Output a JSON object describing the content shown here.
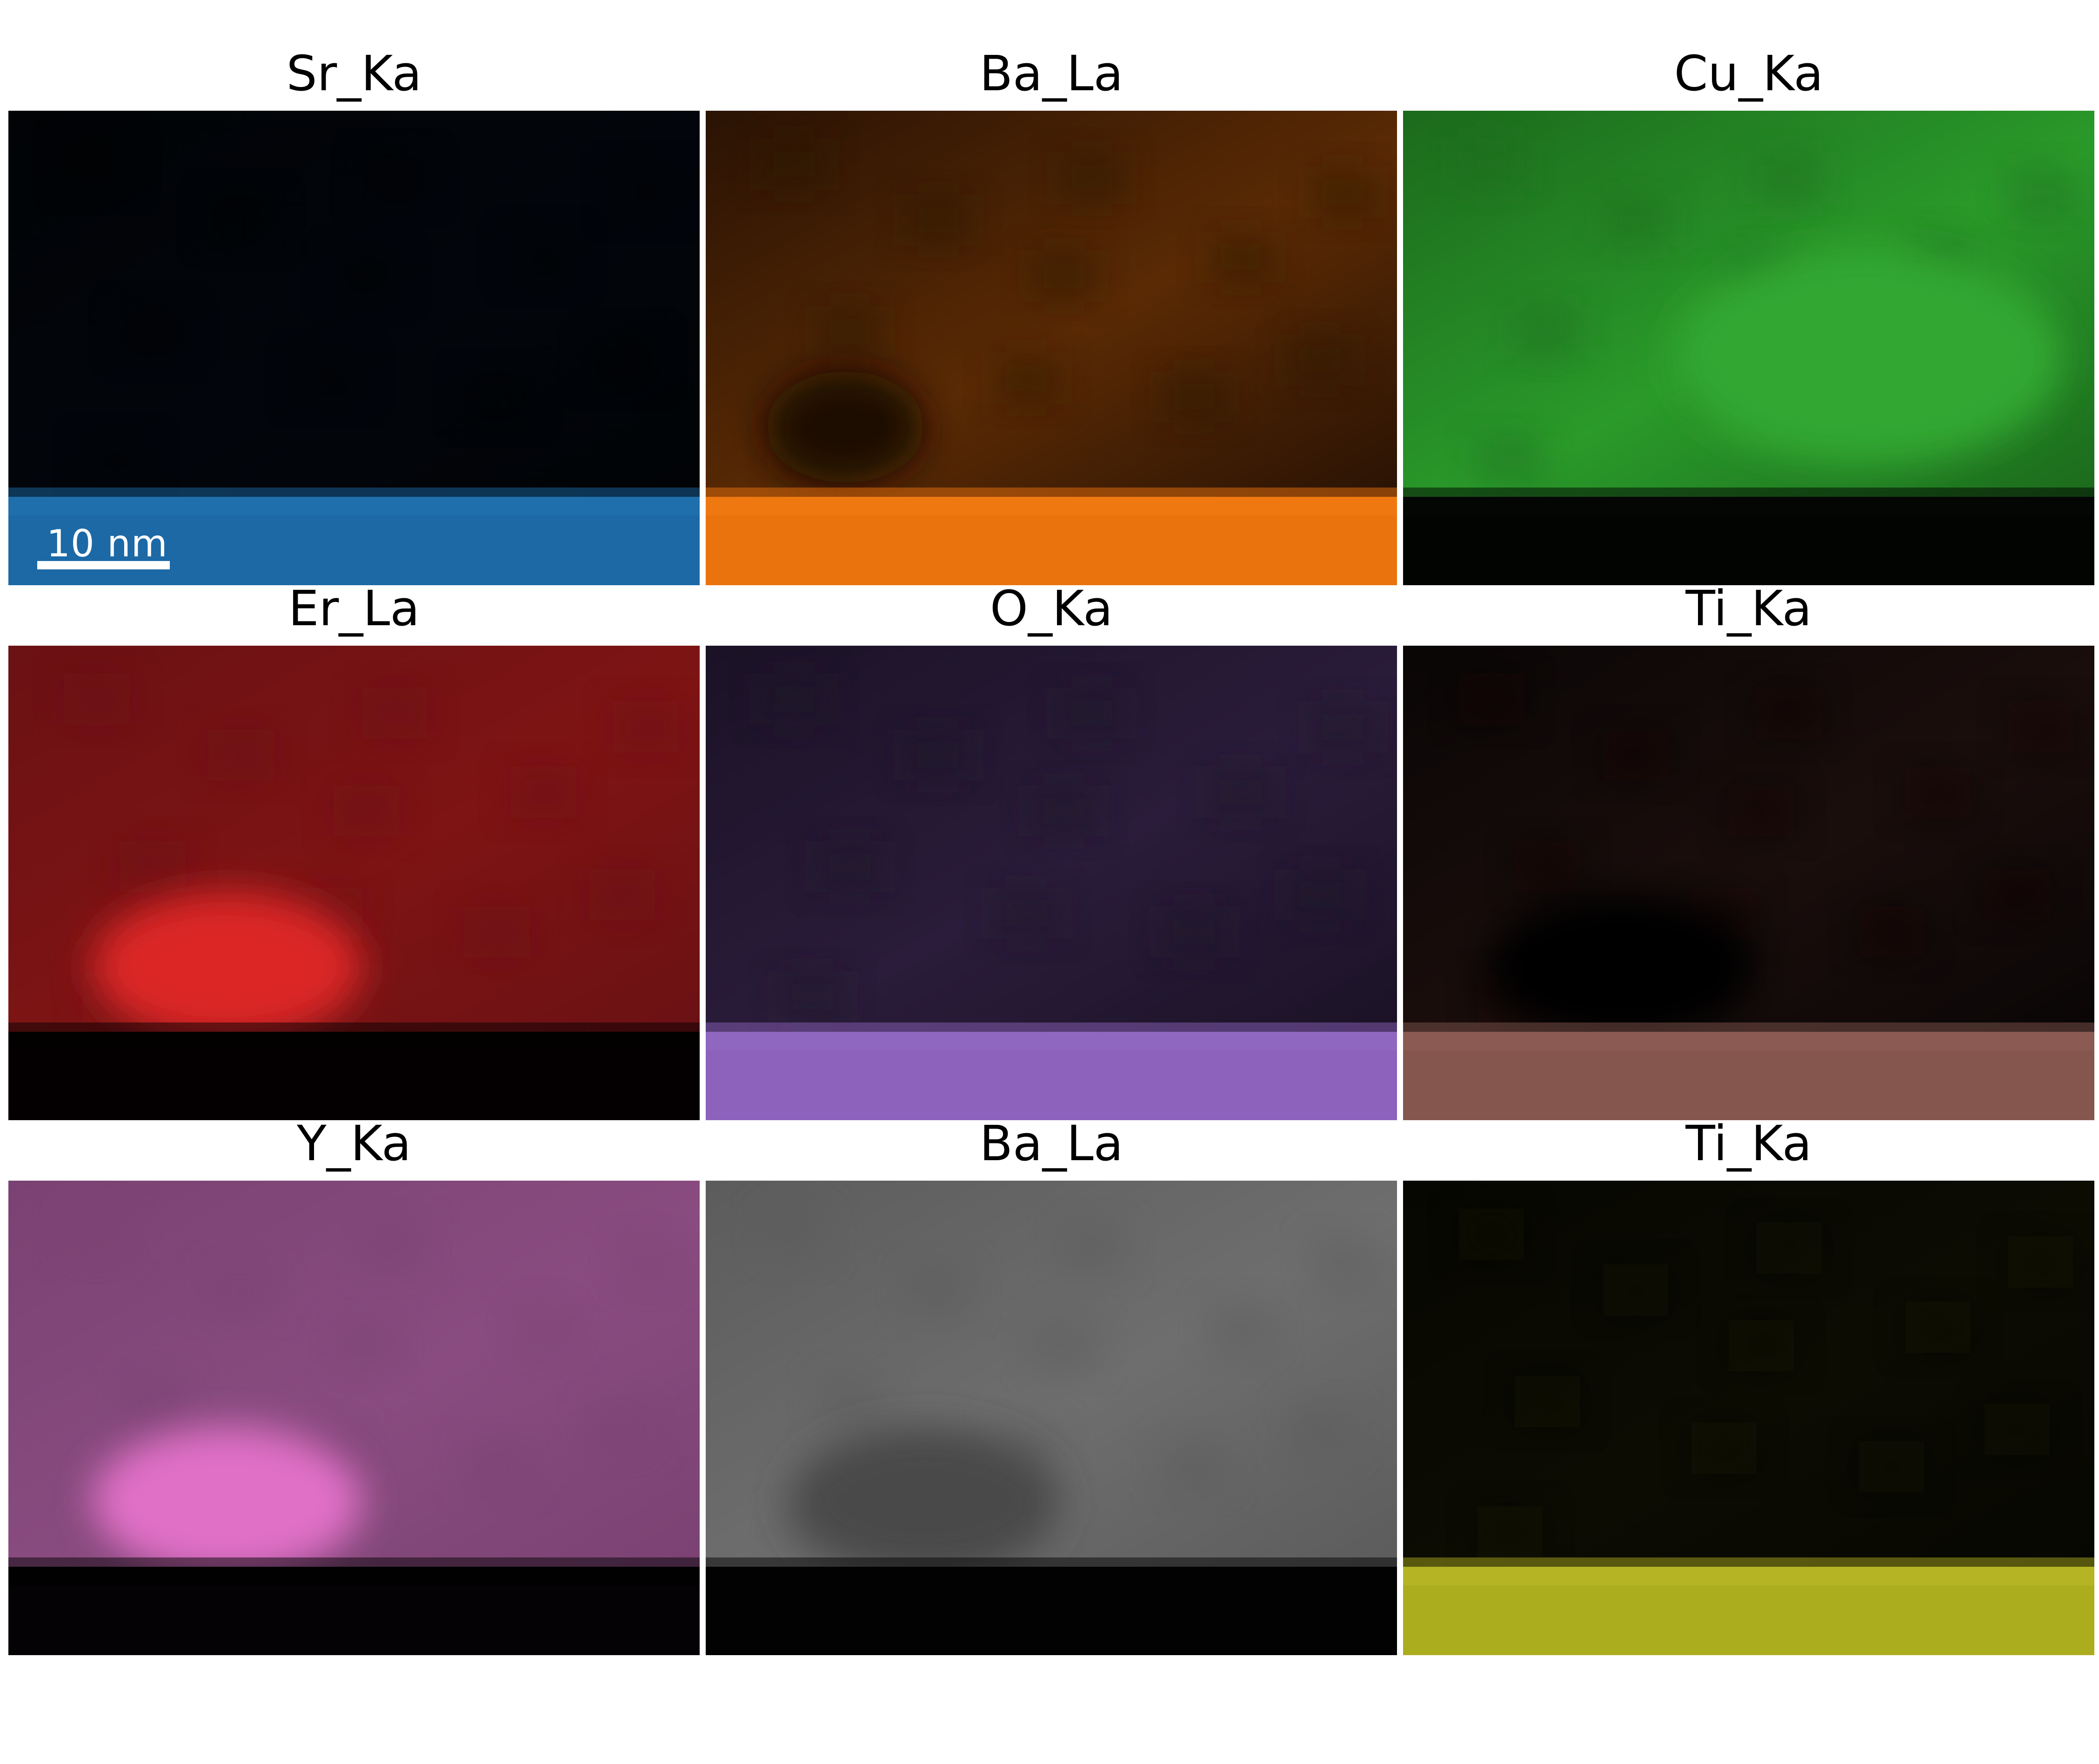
{
  "figure": {
    "scale_bar_label": "10 nm",
    "panels": [
      {
        "title": "Sr_Ka",
        "top_color": "#02060c",
        "top_color2": "#010305",
        "band_color": "#1f6fad",
        "band_color2": "#1a66a2",
        "has_blob": false
      },
      {
        "title": "Ba_La",
        "top_color": "#5a2a04",
        "top_color2": "#2a1304",
        "band_color": "#f07810",
        "band_color2": "#e86f0c",
        "has_blob": true,
        "blob_color": "#1a0c02"
      },
      {
        "title": "Cu_Ka",
        "top_color": "#2a9a2a",
        "top_color2": "#1c6a1c",
        "band_color": "#040604",
        "band_color2": "#020302",
        "has_blob": true,
        "blob_color": "#31a731"
      },
      {
        "title": "Er_La",
        "top_color": "#7e1414",
        "top_color2": "#6b1114",
        "band_color": "#030000",
        "band_color2": "#050001",
        "has_blob": true,
        "blob_color": "#dc2828"
      },
      {
        "title": "O_Ka",
        "top_color": "#2a1c3a",
        "top_color2": "#1b1226",
        "band_color": "#9067c0",
        "band_color2": "#8a5fba",
        "has_blob": false
      },
      {
        "title": "Ti_Ka",
        "top_color": "#1a0e0c",
        "top_color2": "#0a0606",
        "band_color": "#8b5a52",
        "band_color2": "#80544c",
        "has_blob": true,
        "blob_color": "#020101"
      },
      {
        "title": "Y_Ka",
        "top_color": "#8a4c80",
        "top_color2": "#7a4272",
        "band_color": "#020102",
        "band_color2": "#060306",
        "has_blob": true,
        "blob_color": "#e070c6"
      },
      {
        "title": "Ba_La",
        "top_color": "#6e6e6e",
        "top_color2": "#5c5c5c",
        "band_color": "#020202",
        "band_color2": "#030303",
        "has_blob": true,
        "blob_color": "#4a4a4a"
      },
      {
        "title": "Ti_Ka",
        "top_color": "#0c0c03",
        "top_color2": "#070702",
        "band_color": "#b4b424",
        "band_color2": "#a6a61c",
        "has_blob": false
      }
    ]
  }
}
